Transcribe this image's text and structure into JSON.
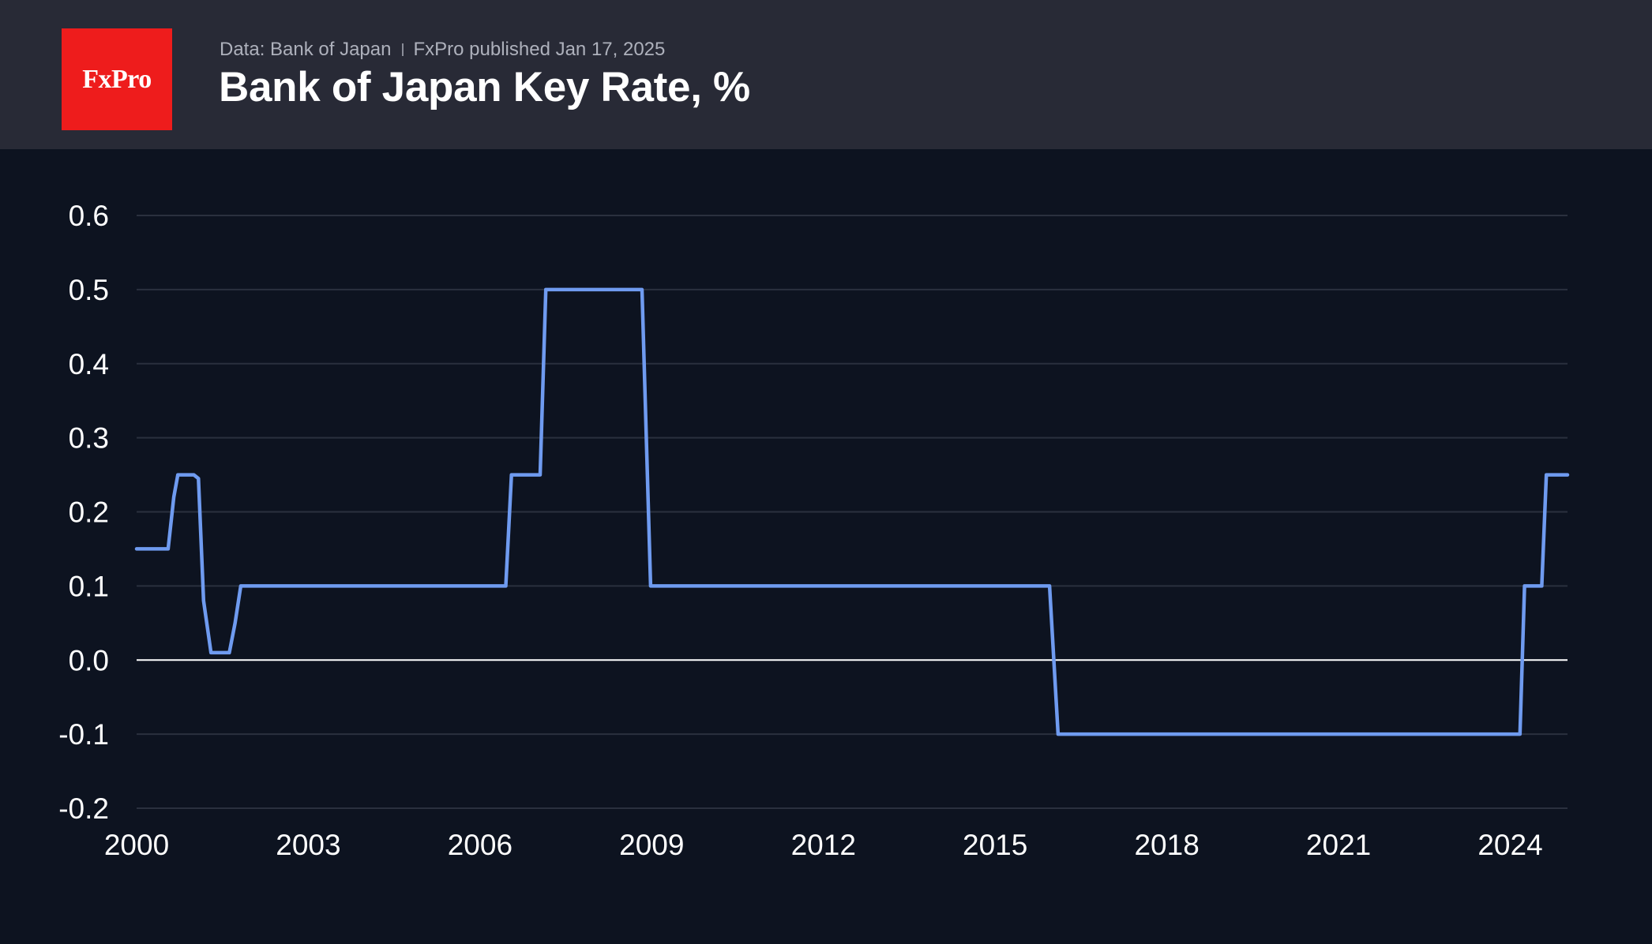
{
  "header": {
    "logo_text": "FxPro",
    "source": "Data: Bank of Japan",
    "published": "FxPro published Jan 17, 2025",
    "title": "Bank of Japan Key Rate, %"
  },
  "colors": {
    "line": "#6f9bf0",
    "grid": "#2a303e",
    "zero_line": "#ffffff",
    "logo_bg": "#ee1c1c",
    "header_bg": "#282a36",
    "chart_bg": "#0d1320"
  },
  "chart_data": {
    "type": "line",
    "title": "Bank of Japan Key Rate, %",
    "xlabel": "",
    "ylabel": "",
    "xlim": [
      2000.0,
      2025.0
    ],
    "ylim": [
      -0.2,
      0.6
    ],
    "grid": true,
    "x_ticks": [
      2000,
      2003,
      2006,
      2009,
      2012,
      2015,
      2018,
      2021,
      2024
    ],
    "x_tick_labels": [
      "2000",
      "2003",
      "2006",
      "2009",
      "2012",
      "2015",
      "2018",
      "2021",
      "2024"
    ],
    "y_ticks": [
      0.6,
      0.5,
      0.4,
      0.3,
      0.2,
      0.1,
      0.0,
      -0.1,
      -0.2
    ],
    "y_tick_labels": [
      "0.6",
      "0.5",
      "0.4",
      "0.3",
      "0.2",
      "0.1",
      "0.0",
      "-0.1",
      "-0.2"
    ],
    "series": [
      {
        "name": "Bank of Japan Key Rate",
        "x": [
          2000.0,
          2000.55,
          2000.65,
          2000.72,
          2001.0,
          2001.08,
          2001.17,
          2001.3,
          2001.62,
          2001.72,
          2001.82,
          2006.45,
          2006.55,
          2007.05,
          2007.15,
          2008.83,
          2008.98,
          2015.95,
          2016.1,
          2024.17,
          2024.25,
          2024.55,
          2024.63,
          2025.0
        ],
        "values": [
          0.15,
          0.15,
          0.22,
          0.25,
          0.25,
          0.245,
          0.08,
          0.01,
          0.01,
          0.05,
          0.1,
          0.1,
          0.25,
          0.25,
          0.5,
          0.5,
          0.1,
          0.1,
          -0.1,
          -0.1,
          0.1,
          0.1,
          0.25,
          0.25
        ]
      }
    ]
  }
}
